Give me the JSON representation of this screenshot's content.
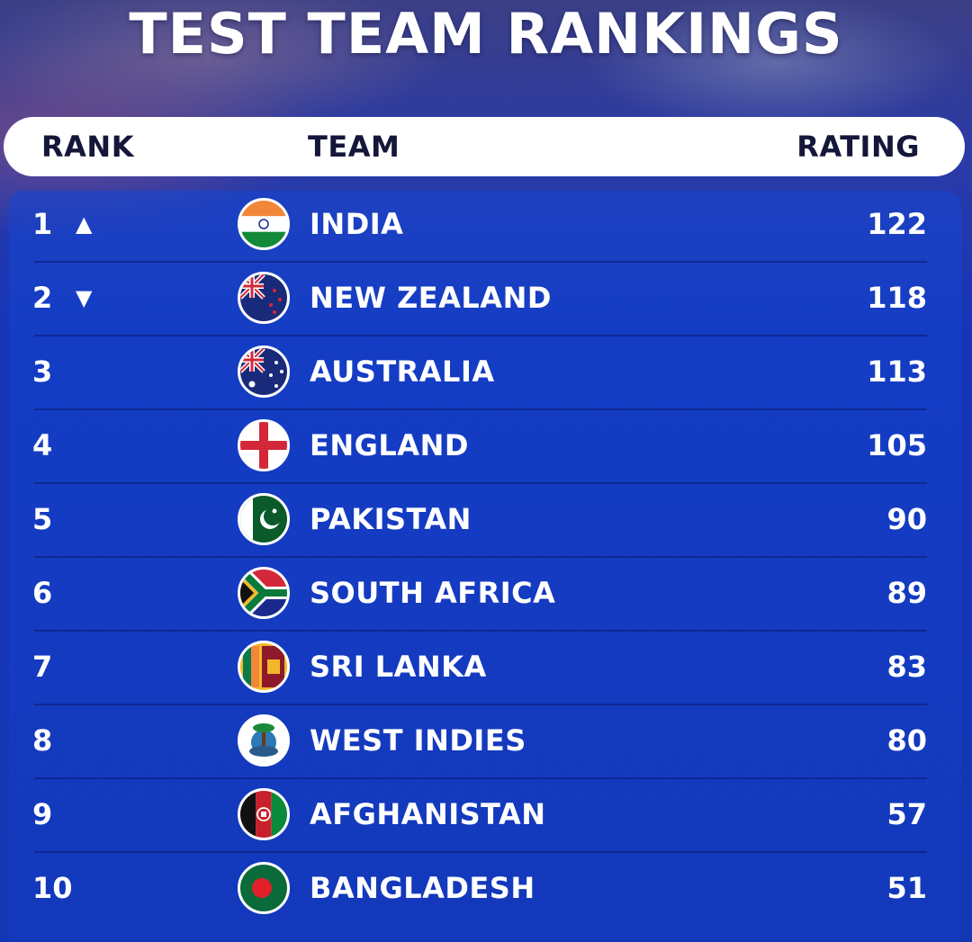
{
  "title": "TEST TEAM RANKINGS",
  "header": {
    "rank": "RANK",
    "team": "TEAM",
    "rating": "RATING"
  },
  "rows": [
    {
      "rank": "1",
      "trend": "▲",
      "team": "INDIA",
      "rating": "122",
      "flag": "india-flag-icon"
    },
    {
      "rank": "2",
      "trend": "▼",
      "team": "NEW ZEALAND",
      "rating": "118",
      "flag": "new-zealand-flag-icon"
    },
    {
      "rank": "3",
      "trend": "",
      "team": "AUSTRALIA",
      "rating": "113",
      "flag": "australia-flag-icon"
    },
    {
      "rank": "4",
      "trend": "",
      "team": "ENGLAND",
      "rating": "105",
      "flag": "england-flag-icon"
    },
    {
      "rank": "5",
      "trend": "",
      "team": "PAKISTAN",
      "rating": "90",
      "flag": "pakistan-flag-icon"
    },
    {
      "rank": "6",
      "trend": "",
      "team": "SOUTH AFRICA",
      "rating": "89",
      "flag": "south-africa-flag-icon"
    },
    {
      "rank": "7",
      "trend": "",
      "team": "SRI LANKA",
      "rating": "83",
      "flag": "sri-lanka-flag-icon"
    },
    {
      "rank": "8",
      "trend": "",
      "team": "WEST INDIES",
      "rating": "80",
      "flag": "west-indies-flag-icon"
    },
    {
      "rank": "9",
      "trend": "",
      "team": "AFGHANISTAN",
      "rating": "57",
      "flag": "afghanistan-flag-icon"
    },
    {
      "rank": "10",
      "trend": "",
      "team": "BANGLADESH",
      "rating": "51",
      "flag": "bangladesh-flag-icon"
    }
  ],
  "colors": {
    "background": "#1236b4",
    "header_text": "#14163a",
    "text": "#ffffff"
  }
}
